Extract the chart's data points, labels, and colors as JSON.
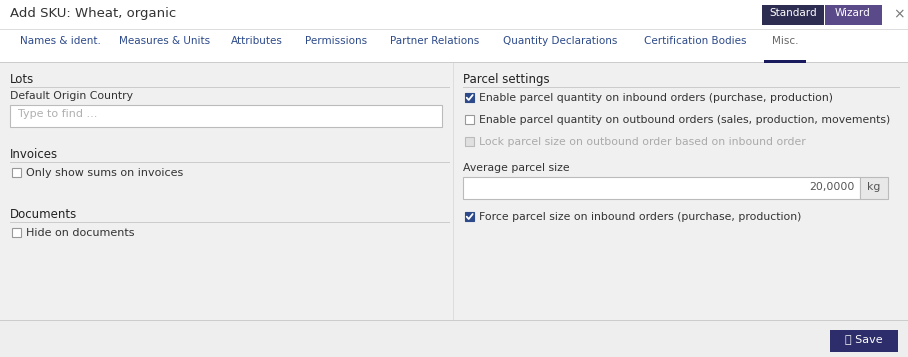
{
  "bg_color": "#eeeeee",
  "header_bg": "#ffffff",
  "title_text": "Add SKU: Wheat, organic",
  "close_x": "×",
  "btn_standard_bg": "#2d2d52",
  "btn_wizard_bg": "#5a4a8a",
  "btn_text_color": "#ffffff",
  "tabs": [
    "Names & ident.",
    "Measures & Units",
    "Attributes",
    "Permissions",
    "Partner Relations",
    "Quantity Declarations",
    "Certification Bodies",
    "Misc."
  ],
  "active_tab": "Misc.",
  "tab_underline_color": "#1a1a5e",
  "content_bg": "#f0f0f0",
  "save_btn_bg": "#2d2d6b",
  "divider_color": "#cccccc",
  "checkbox_checked_bg": "#2d4a8a",
  "input_bg": "#ffffff",
  "input_border": "#bbbbbb",
  "disabled_color": "#aaaaaa",
  "tab_text_color": "#2d4a8a",
  "active_tab_text_color": "#666666",
  "section_text_color": "#222222",
  "body_text_color": "#333333"
}
